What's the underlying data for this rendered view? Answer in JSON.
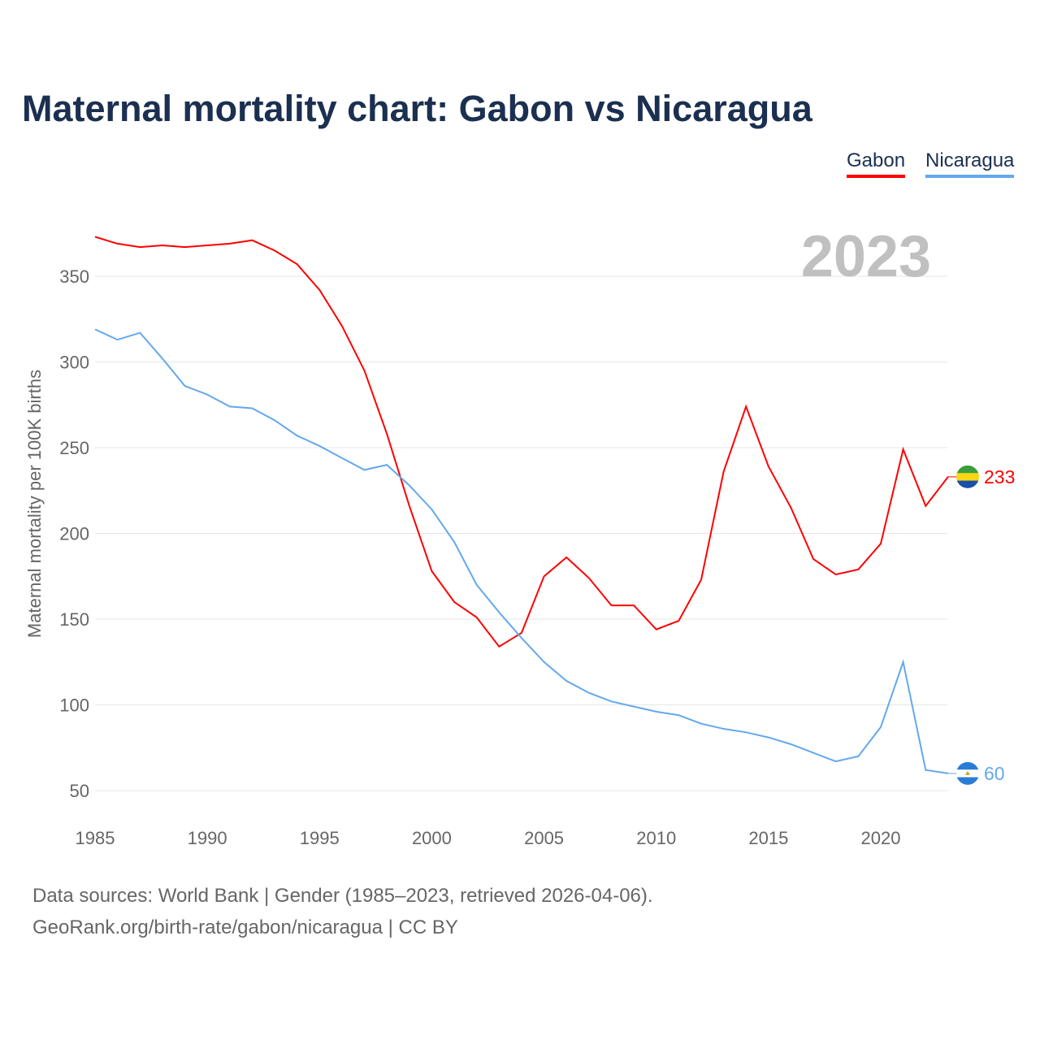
{
  "chart_data": {
    "type": "line",
    "title": "Maternal mortality chart: Gabon vs Nicaragua",
    "ylabel": "Maternal mortality per 100K births",
    "xlabel": "",
    "year_label": "2023",
    "xlim": [
      1985,
      2023
    ],
    "ylim": [
      35,
      380
    ],
    "xticks": [
      1985,
      1990,
      1995,
      2000,
      2005,
      2010,
      2015,
      2020
    ],
    "yticks": [
      50,
      100,
      150,
      200,
      250,
      300,
      350
    ],
    "grid": true,
    "legend_position": "top-right",
    "x": [
      1985,
      1986,
      1987,
      1988,
      1989,
      1990,
      1991,
      1992,
      1993,
      1994,
      1995,
      1996,
      1997,
      1998,
      1999,
      2000,
      2001,
      2002,
      2003,
      2004,
      2005,
      2006,
      2007,
      2008,
      2009,
      2010,
      2011,
      2012,
      2013,
      2014,
      2015,
      2016,
      2017,
      2018,
      2019,
      2020,
      2021,
      2022,
      2023
    ],
    "series": [
      {
        "name": "Gabon",
        "color": "#ff0000",
        "end_label": "233",
        "values": [
          373,
          369,
          367,
          368,
          367,
          368,
          369,
          371,
          365,
          357,
          342,
          321,
          295,
          258,
          216,
          178,
          160,
          151,
          134,
          142,
          175,
          186,
          174,
          158,
          158,
          144,
          149,
          173,
          236,
          274,
          239,
          215,
          185,
          176,
          179,
          194,
          249,
          216,
          233
        ]
      },
      {
        "name": "Nicaragua",
        "color": "#64a8ec",
        "end_label": "60",
        "values": [
          319,
          313,
          317,
          302,
          286,
          281,
          274,
          273,
          266,
          257,
          251,
          244,
          237,
          240,
          228,
          214,
          195,
          170,
          154,
          139,
          125,
          114,
          107,
          102,
          99,
          96,
          94,
          89,
          86,
          84,
          81,
          77,
          72,
          67,
          70,
          87,
          125,
          62,
          60
        ]
      }
    ]
  },
  "footer": {
    "line1": "Data sources: World Bank | Gender (1985–2023, retrieved 2026-04-06).",
    "line2": "GeoRank.org/birth-rate/gabon/nicaragua | CC BY"
  }
}
